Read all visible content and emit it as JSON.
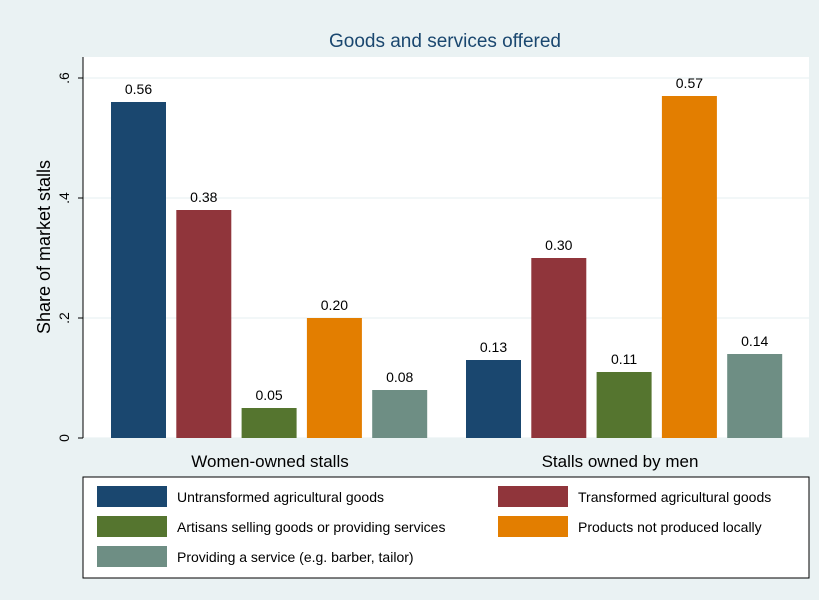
{
  "chart_data": {
    "type": "bar",
    "title": "Goods and services offered",
    "ylabel": "Share of market stalls",
    "xlabel": "",
    "ylim": [
      0,
      0.6
    ],
    "yticks": [
      0,
      0.2,
      0.4,
      0.6
    ],
    "ytick_labels": [
      "0",
      ".2",
      ".4",
      ".6"
    ],
    "categories": [
      "Women-owned stalls",
      "Stalls owned by men"
    ],
    "series": [
      {
        "name": "Untransformed agricultural goods",
        "color": "#1a476f",
        "values": [
          0.56,
          0.13
        ]
      },
      {
        "name": "Transformed agricultural goods",
        "color": "#90353b",
        "values": [
          0.38,
          0.3
        ]
      },
      {
        "name": "Artisans selling goods or providing services",
        "color": "#55752f",
        "values": [
          0.05,
          0.11
        ]
      },
      {
        "name": "Products not produced locally",
        "color": "#e37e00",
        "values": [
          0.2,
          0.57
        ]
      },
      {
        "name": "Providing a service (e.g. barber, tailor)",
        "color": "#6e8e84",
        "values": [
          0.08,
          0.14
        ]
      }
    ],
    "data_labels": [
      [
        "0.56",
        "0.13"
      ],
      [
        "0.38",
        "0.30"
      ],
      [
        "0.05",
        "0.11"
      ],
      [
        "0.20",
        "0.57"
      ],
      [
        "0.08",
        "0.14"
      ]
    ],
    "grid": true,
    "legend_position": "bottom"
  }
}
